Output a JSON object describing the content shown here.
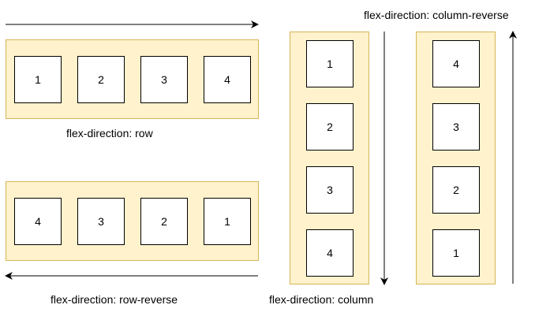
{
  "diagrams": [
    {
      "caption": "flex-direction: row",
      "items": [
        "1",
        "2",
        "3",
        "4"
      ]
    },
    {
      "caption": "flex-direction: row-reverse",
      "items": [
        "4",
        "3",
        "2",
        "1"
      ]
    },
    {
      "caption": "flex-direction: column",
      "items": [
        "1",
        "2",
        "3",
        "4"
      ]
    },
    {
      "caption": "flex-direction: column-reverse",
      "items": [
        "4",
        "3",
        "2",
        "1"
      ]
    }
  ],
  "colors": {
    "container_fill": "#fff2cc",
    "container_border": "#d6b656",
    "box_fill": "#ffffff",
    "stroke": "#000000"
  }
}
